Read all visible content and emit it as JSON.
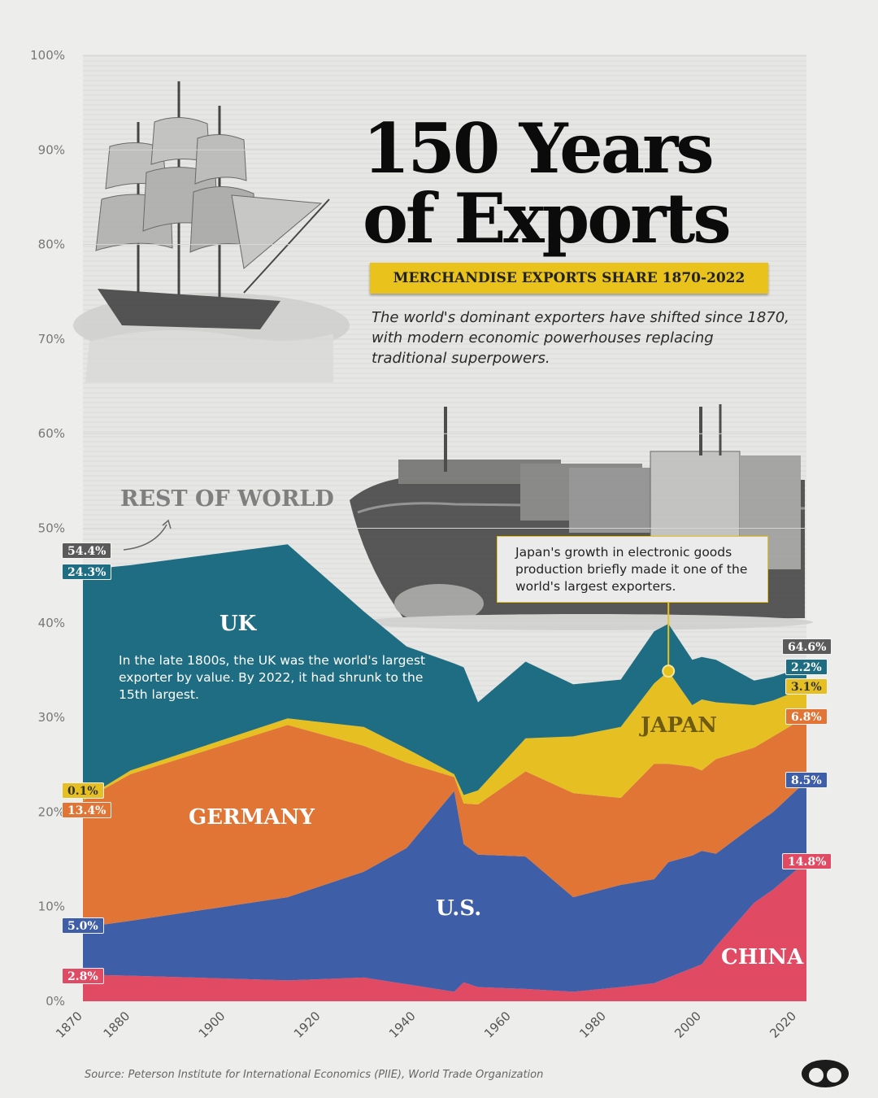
{
  "title": "150 Years of Exports",
  "banner": "MERCHANDISE EXPORTS SHARE 1870-2022",
  "subtitle": "The world's dominant exporters have shifted since 1870, with modern economic powerhouses replacing traditional superpowers.",
  "annotations": {
    "rest_of_world": "REST OF WORLD",
    "uk_note": "In the late 1800s, the UK was the world's largest exporter by value. By 2022, it had shrunk to the 15th largest.",
    "japan_note": "Japan's growth in electronic goods production briefly made it one of the world's largest exporters."
  },
  "region_labels": {
    "uk": "UK",
    "germany": "GERMANY",
    "us": "U.S.",
    "japan": "JAPAN",
    "china": "CHINA"
  },
  "start_tags": {
    "rest": "54.4%",
    "uk": "24.3%",
    "japan": "0.1%",
    "germany": "13.4%",
    "us": "5.0%",
    "china": "2.8%"
  },
  "end_tags": {
    "rest": "64.6%",
    "uk": "2.2%",
    "japan": "3.1%",
    "germany": "6.8%",
    "us": "8.5%",
    "china": "14.8%"
  },
  "source": "Source: Peterson Institute for International Economics (PIIE), World Trade Organization",
  "colors": {
    "china": "#e04a63",
    "us": "#3f5ea8",
    "germany": "#e07536",
    "japan": "#e6c022",
    "uk": "#1e6d83",
    "rest": "#e0e0de",
    "background": "#ededeb"
  },
  "chart_data": {
    "type": "area",
    "stacked": true,
    "x": [
      1870,
      1880,
      1913,
      1929,
      1938,
      1948,
      1950,
      1953,
      1963,
      1973,
      1983,
      1990,
      1993,
      1998,
      2000,
      2003,
      2011,
      2015,
      2022
    ],
    "series": [
      {
        "name": "CHINA",
        "values": [
          2.8,
          2.7,
          2.2,
          2.5,
          1.8,
          1.0,
          2.0,
          1.5,
          1.3,
          1.0,
          1.5,
          1.9,
          2.5,
          3.5,
          3.9,
          5.8,
          10.4,
          11.8,
          14.8
        ]
      },
      {
        "name": "U.S.",
        "values": [
          5.0,
          5.8,
          8.8,
          11.2,
          14.4,
          21.2,
          14.6,
          14.0,
          14.0,
          10.0,
          10.8,
          11.0,
          12.2,
          11.9,
          12.0,
          9.8,
          8.2,
          8.2,
          8.5
        ]
      },
      {
        "name": "GERMANY",
        "values": [
          13.4,
          15.5,
          18.2,
          13.3,
          9.0,
          1.5,
          4.3,
          5.3,
          9.0,
          11.0,
          9.2,
          12.2,
          10.4,
          9.4,
          8.5,
          10.0,
          8.2,
          8.0,
          6.8
        ]
      },
      {
        "name": "JAPAN",
        "values": [
          0.1,
          0.4,
          0.7,
          2.0,
          1.5,
          0.3,
          0.9,
          1.5,
          3.5,
          6.0,
          7.5,
          8.5,
          9.8,
          6.5,
          7.5,
          6.0,
          4.5,
          3.8,
          3.1
        ]
      },
      {
        "name": "UK",
        "values": [
          24.3,
          21.7,
          18.4,
          12.2,
          10.8,
          11.7,
          13.5,
          9.3,
          8.1,
          5.5,
          5.0,
          5.5,
          5.0,
          4.8,
          4.5,
          4.5,
          2.6,
          2.5,
          2.2
        ]
      }
    ],
    "rest_of_world": [
      54.4,
      54.0,
      51.7,
      58.8,
      62.5,
      64.3,
      64.7,
      68.4,
      64.1,
      66.5,
      66.0,
      61.0,
      60.1,
      63.9,
      63.6,
      63.9,
      66.1,
      65.7,
      64.6
    ],
    "xlim": [
      1870,
      2022
    ],
    "ylim": [
      0,
      100
    ],
    "y_ticks": [
      "0%",
      "10%",
      "20%",
      "30%",
      "40%",
      "50%",
      "60%",
      "70%",
      "80%",
      "90%",
      "100%"
    ],
    "x_ticks": [
      1870,
      1880,
      1900,
      1920,
      1940,
      1960,
      1980,
      2000,
      2020
    ],
    "japan_peak_year": 1993
  }
}
